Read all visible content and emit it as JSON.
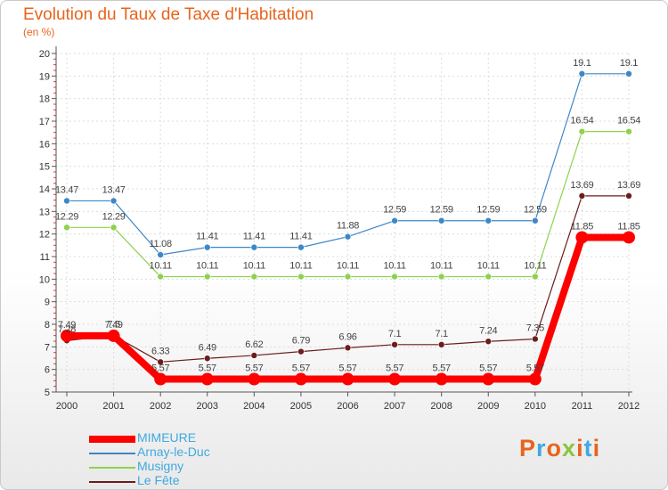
{
  "title": "Evolution du Taux de Taxe d'Habitation",
  "subtitle": "(en %)",
  "logo": {
    "text": "Proxiti",
    "letter_colors": [
      "#e8641c",
      "#3fa9e0",
      "#e8641c",
      "#8ac43f",
      "#e8641c",
      "#3fa9e0",
      "#e8641c"
    ]
  },
  "chart_data": {
    "type": "line",
    "x": [
      "2000",
      "2001",
      "2002",
      "2003",
      "2004",
      "2005",
      "2006",
      "2007",
      "2008",
      "2009",
      "2010",
      "2011",
      "2012"
    ],
    "ylim": [
      5,
      20
    ],
    "yticks": [
      "5",
      "6",
      "7",
      "8",
      "9",
      "10",
      "11",
      "12",
      "13",
      "14",
      "15",
      "16",
      "17",
      "18",
      "19",
      "20"
    ],
    "grid": true,
    "legend_position": "bottom-left",
    "series": [
      {
        "name": "MIMEURE",
        "color": "#ff0000",
        "values": [
          7.49,
          7.49,
          5.57,
          5.57,
          5.57,
          5.57,
          5.57,
          5.57,
          5.57,
          5.57,
          5.57,
          11.85,
          11.85
        ],
        "labels": [
          "7.49",
          "7.49",
          "5.57",
          "5.57",
          "5.57",
          "5.57",
          "5.57",
          "5.57",
          "5.57",
          "5.57",
          "5.57",
          "11.85",
          "11.85"
        ]
      },
      {
        "name": "Arnay-le-Duc",
        "color": "#3d87c7",
        "values": [
          13.47,
          13.47,
          11.08,
          11.41,
          11.41,
          11.41,
          11.88,
          12.59,
          12.59,
          12.59,
          12.59,
          19.1,
          19.1
        ],
        "labels": [
          "13.47",
          "13.47",
          "11.08",
          "11.41",
          "11.41",
          "11.41",
          "11.88",
          "12.59",
          "12.59",
          "12.59",
          "12.59",
          "19.1",
          "19.1"
        ]
      },
      {
        "name": "Musigny",
        "color": "#8fd14f",
        "values": [
          12.29,
          12.29,
          10.11,
          10.11,
          10.11,
          10.11,
          10.11,
          10.11,
          10.11,
          10.11,
          10.11,
          16.54,
          16.54
        ],
        "labels": [
          "12.29",
          "12.29",
          "10.11",
          "10.11",
          "10.11",
          "10.11",
          "10.11",
          "10.11",
          "10.11",
          "10.11",
          "10.11",
          "16.54",
          "16.54"
        ]
      },
      {
        "name": "Le Fête",
        "color": "#6b1d1d",
        "values": [
          7.28,
          7.5,
          6.33,
          6.49,
          6.62,
          6.79,
          6.96,
          7.1,
          7.1,
          7.24,
          7.35,
          13.69,
          13.69
        ],
        "labels": [
          "7.28",
          "7.5",
          "6.33",
          "6.49",
          "6.62",
          "6.79",
          "6.96",
          "7.1",
          "7.1",
          "7.24",
          "7.35",
          "13.69",
          "13.69"
        ]
      }
    ]
  }
}
